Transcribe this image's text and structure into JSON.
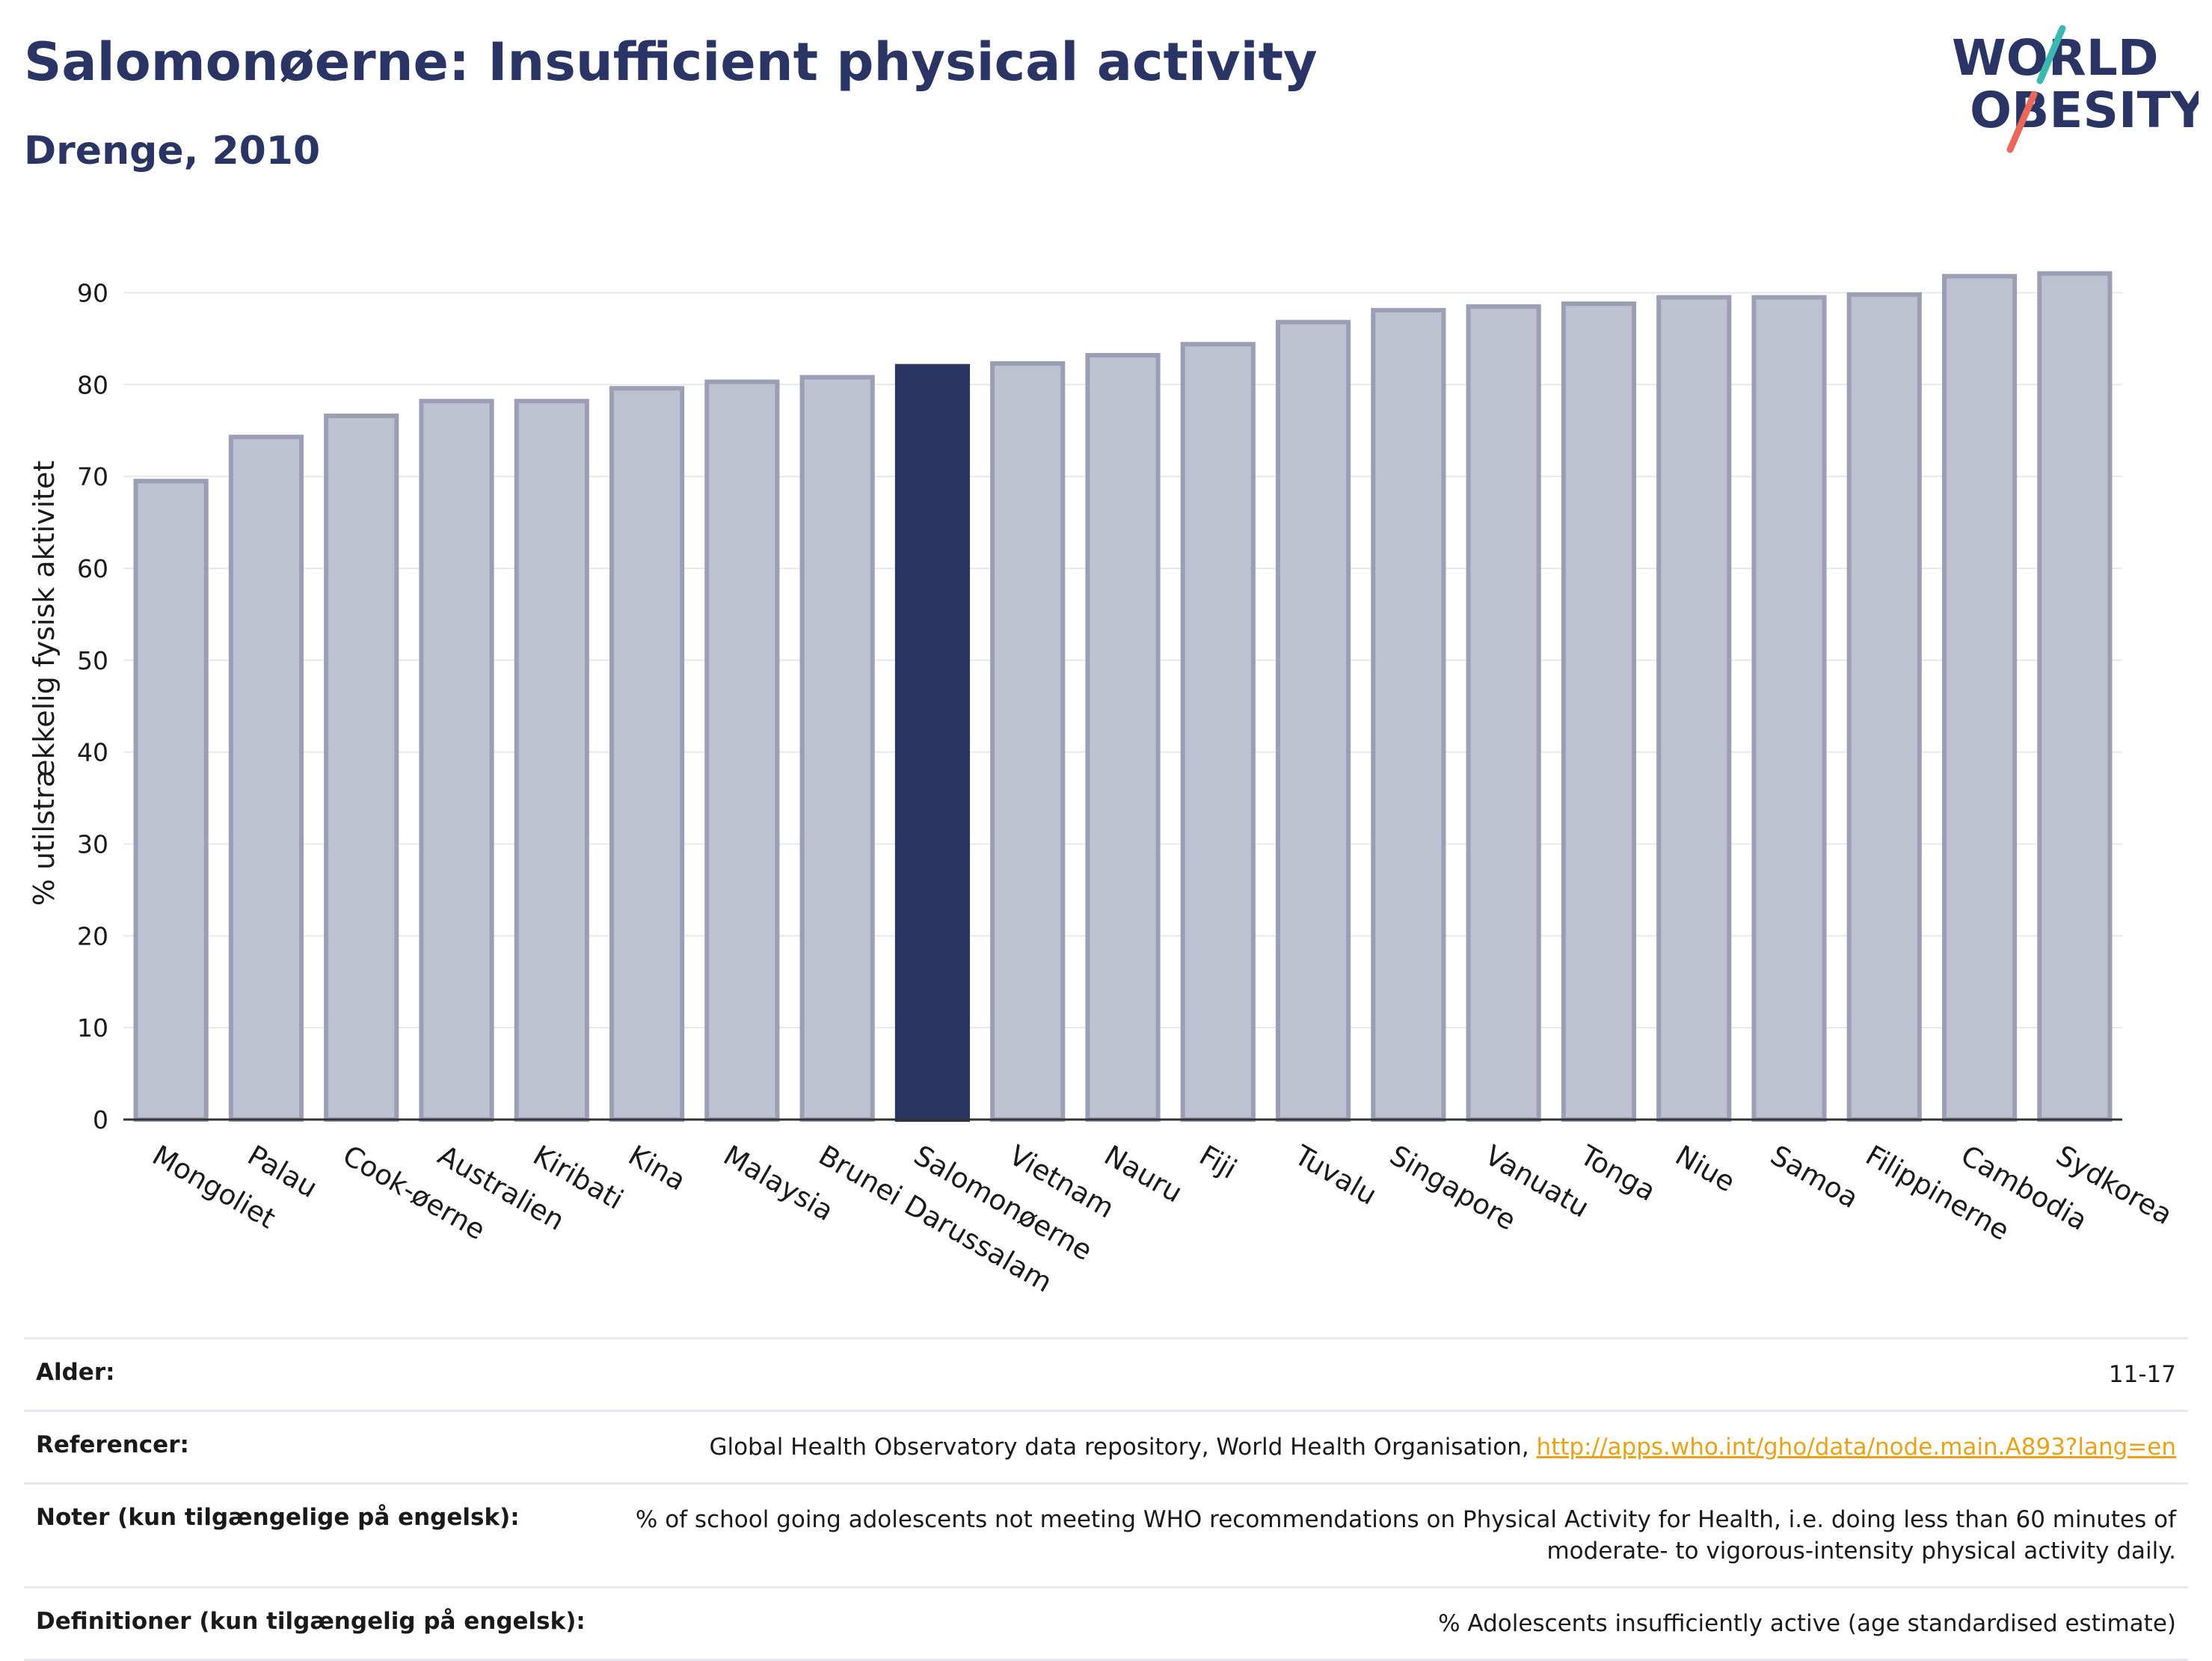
{
  "title": "Salomonøerne: Insufficient physical activity",
  "subtitle": "Drenge, 2010",
  "logo": {
    "line1": "WORLD",
    "line2": "OBESITY"
  },
  "colors": {
    "bar": "#bec1d0",
    "bar_stroke": "#9a9fb6",
    "highlight": "#2a3561",
    "grid": "#e6e8ef",
    "text": "#283460",
    "link": "#e8a21a"
  },
  "chart_data": {
    "type": "bar",
    "ylabel": "% utilstrækkelig fysisk aktivitet",
    "ylim": [
      0,
      95
    ],
    "yticks": [
      0,
      10,
      20,
      30,
      40,
      50,
      60,
      70,
      80,
      90
    ],
    "grid": true,
    "highlight": "Salomonøerne",
    "categories": [
      "Mongoliet",
      "Palau",
      "Cook-øerne",
      "Australien",
      "Kiribati",
      "Kina",
      "Malaysia",
      "Brunei Darussalam",
      "Salomonøerne",
      "Vietnam",
      "Nauru",
      "Fiji",
      "Tuvalu",
      "Singapore",
      "Vanuatu",
      "Tonga",
      "Niue",
      "Samoa",
      "Filippinerne",
      "Cambodia",
      "Sydkorea"
    ],
    "values": [
      69.5,
      74.3,
      76.6,
      78.2,
      78.2,
      79.6,
      80.3,
      80.8,
      82.0,
      82.3,
      83.2,
      84.4,
      86.8,
      88.1,
      88.5,
      88.8,
      89.5,
      89.5,
      89.8,
      91.8,
      92.1
    ]
  },
  "footer": {
    "age_label": "Alder:",
    "age_value": "11-17",
    "refs_label": "Referencer:",
    "refs_text": "Global Health Observatory data repository, World Health Organisation, ",
    "refs_link": "http://apps.who.int/gho/data/node.main.A893?lang=en",
    "notes_label": "Noter (kun tilgængelige på engelsk):",
    "notes_value": "% of school going adolescents not meeting WHO recommendations on Physical Activity for Health, i.e. doing less than 60 minutes of moderate- to vigorous-intensity physical activity daily.",
    "defs_label": "Definitioner (kun tilgængelig på engelsk):",
    "defs_value": "% Adolescents insufficiently active (age standardised estimate)"
  }
}
